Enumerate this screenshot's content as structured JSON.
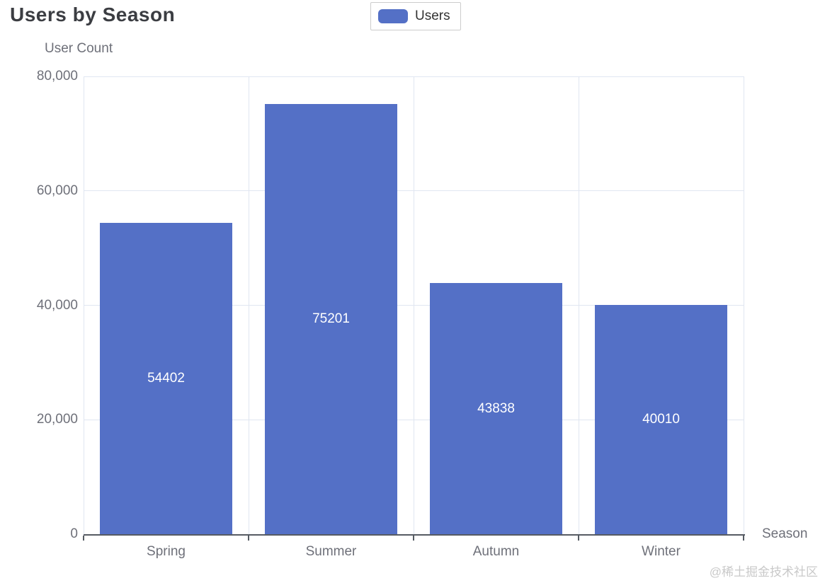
{
  "title": "Users by Season",
  "legend": {
    "items": [
      {
        "label": "Users",
        "color": "#5470C6"
      }
    ]
  },
  "axes": {
    "y_name": "User Count",
    "x_name": "Season"
  },
  "watermark": "@稀土掘金技术社区",
  "colors": {
    "bar": "#5470C6",
    "grid_line": "#E0E6F1",
    "axis_line": "#565b63",
    "tick_label": "#6E7079",
    "title": "#3b3d42",
    "value_label": "#ffffff",
    "legend_border": "#cccccc",
    "legend_text": "#333333",
    "watermark": "#c9c9c9",
    "background": "#ffffff"
  },
  "chart_data": {
    "type": "bar",
    "categories": [
      "Spring",
      "Summer",
      "Autumn",
      "Winter"
    ],
    "series": [
      {
        "name": "Users",
        "values": [
          54402,
          75201,
          43838,
          40010
        ]
      }
    ],
    "title": "Users by Season",
    "xlabel": "Season",
    "ylabel": "User Count",
    "ylim": [
      0,
      80000
    ],
    "y_ticks": [
      0,
      20000,
      40000,
      60000,
      80000
    ],
    "grid": true,
    "legend_position": "top-center",
    "value_label_position": "inside-middle",
    "bar_width_fraction": 0.8
  }
}
